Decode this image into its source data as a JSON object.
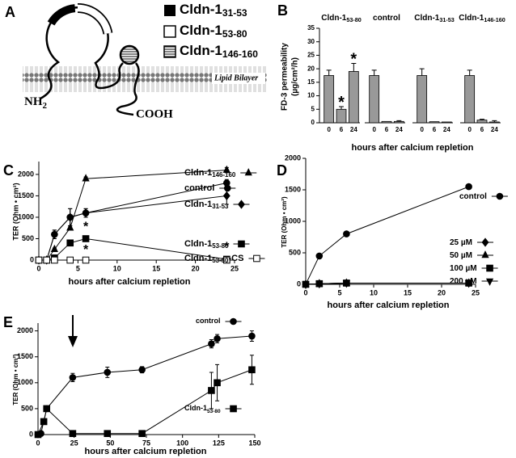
{
  "panel_a": {
    "label": "A",
    "legend": [
      {
        "name": "Cldn-1",
        "sub": "31-53"
      },
      {
        "name": "Cldn-1",
        "sub": "53-80"
      },
      {
        "name": "Cldn-1",
        "sub": "146-160"
      }
    ],
    "membrane": "Lipid Bilayer",
    "n_terminus": "NH",
    "n_terminus_sub": "2",
    "c_terminus": "COOH"
  },
  "chart_data": [
    {
      "type": "bar",
      "label": "B",
      "y_label": [
        "FD-3 permeability",
        "(µg/cm²/h)"
      ],
      "x_label": "hours after calcium repletion",
      "ylim": [
        0,
        35
      ],
      "yticks": [
        0,
        5,
        10,
        15,
        20,
        25,
        30,
        35
      ],
      "color": "#999999",
      "groups": [
        {
          "name": "Cldn-1",
          "name_sub": "53-80",
          "categories": [
            "0",
            "6",
            "24"
          ],
          "values": [
            17.5,
            5,
            19
          ],
          "errors": [
            2,
            1,
            3
          ],
          "stars": [
            null,
            "*",
            "*"
          ]
        },
        {
          "name": "control",
          "categories": [
            "0",
            "6",
            "24"
          ],
          "values": [
            17.5,
            0.5,
            0.5
          ],
          "errors": [
            2,
            0,
            0.3
          ]
        },
        {
          "name": "Cldn-1",
          "name_sub": "31-53",
          "categories": [
            "0",
            "6",
            "24"
          ],
          "values": [
            17.5,
            0.4,
            0.3
          ],
          "errors": [
            2.5,
            0,
            0
          ]
        },
        {
          "name": "Cldn-1",
          "name_sub": "146-160",
          "categories": [
            "0",
            "6",
            "24"
          ],
          "values": [
            17.5,
            1,
            0.3
          ],
          "errors": [
            2,
            0.3,
            0.5
          ]
        }
      ]
    },
    {
      "type": "line",
      "label": "C",
      "y_label": "TER (Ohm • cm²)",
      "x_label": "hours after calcium repletion",
      "xlim": [
        0,
        25
      ],
      "xticks": [
        0,
        5,
        10,
        15,
        20,
        25
      ],
      "ylim": [
        0,
        2300
      ],
      "yticks": [
        0,
        500,
        1000,
        1500,
        2000
      ],
      "x": [
        0,
        1,
        2,
        4,
        6,
        24
      ],
      "color": "#000000",
      "series": [
        {
          "name": "Cldn-1",
          "name_sub": "146-160",
          "marker": "triangle",
          "values": [
            0,
            0,
            250,
            750,
            1900,
            2100
          ],
          "errors": [
            0,
            0,
            30,
            50,
            40,
            60
          ]
        },
        {
          "name": "control",
          "marker": "circle",
          "values": [
            0,
            0,
            600,
            1000,
            1100,
            1800
          ],
          "errors": [
            0,
            0,
            100,
            200,
            100,
            80
          ]
        },
        {
          "name": "Cldn-1",
          "name_sub": "31-53",
          "marker": "diamond",
          "values": [
            0,
            0,
            600,
            1000,
            1100,
            1500
          ],
          "errors": [
            0,
            0,
            100,
            200,
            100,
            200
          ]
        },
        {
          "name": "Cldn-1",
          "name_sub": "53-80",
          "marker": "square",
          "values": [
            0,
            0,
            50,
            400,
            500,
            20
          ],
          "errors": [
            0,
            0,
            20,
            30,
            40,
            50
          ],
          "stars": [
            null,
            null,
            null,
            null,
            "*",
            "*"
          ]
        },
        {
          "name": "Cldn-1",
          "name_sub": "53-80",
          "name_suffix": "-CS",
          "marker": "square-open",
          "values": [
            0,
            0,
            0,
            0,
            0,
            0
          ],
          "stars": [
            null,
            null,
            null,
            null,
            "*",
            null
          ]
        }
      ]
    },
    {
      "type": "line",
      "label": "D",
      "y_label": "TER (Ohm • cm²)",
      "x_label": "hours after calcium repletion",
      "xlim": [
        0,
        25
      ],
      "xticks": [
        0,
        5,
        10,
        15,
        20,
        25
      ],
      "ylim": [
        0,
        2000
      ],
      "yticks": [
        0,
        500,
        1000,
        1500,
        2000
      ],
      "color": "#000000",
      "series": [
        {
          "name": "control",
          "marker": "circle",
          "x": [
            0,
            2,
            6,
            24
          ],
          "values": [
            0,
            450,
            800,
            1550
          ]
        },
        {
          "name": "25  µM",
          "marker": "diamond",
          "x": [
            0,
            2,
            6,
            24
          ],
          "values": [
            0,
            10,
            20,
            20
          ]
        },
        {
          "name": "50  µM",
          "marker": "triangle",
          "x": [
            0,
            2,
            6,
            24
          ],
          "values": [
            0,
            10,
            20,
            20
          ]
        },
        {
          "name": "100  µM",
          "marker": "square",
          "x": [
            0,
            2,
            6,
            24
          ],
          "values": [
            0,
            10,
            20,
            20
          ]
        },
        {
          "name": "200  µM",
          "marker": "triangle-down",
          "x": [
            0,
            2,
            6,
            24
          ],
          "values": [
            0,
            10,
            20,
            20
          ]
        }
      ]
    },
    {
      "type": "line",
      "label": "E",
      "y_label": "TER (Ohm • cm²)",
      "x_label": "hours after calcium repletion",
      "xlim": [
        0,
        150
      ],
      "xticks": [
        0,
        25,
        50,
        75,
        100,
        125,
        150
      ],
      "ylim": [
        0,
        2150
      ],
      "yticks": [
        0,
        500,
        1000,
        1500,
        2000
      ],
      "color": "#000000",
      "series": [
        {
          "name": "control",
          "marker": "circle",
          "x": [
            0,
            2,
            6,
            24,
            48,
            72,
            120,
            124,
            148
          ],
          "values": [
            0,
            20,
            500,
            1100,
            1200,
            1250,
            1750,
            1850,
            1900
          ],
          "errors": [
            0,
            0,
            0,
            80,
            100,
            60,
            80,
            80,
            100
          ]
        },
        {
          "name": "Cldn-1",
          "name_sub": "53-80",
          "marker": "square",
          "x": [
            0,
            4,
            6,
            24,
            48,
            72,
            120,
            124,
            148
          ],
          "values": [
            0,
            250,
            500,
            20,
            20,
            20,
            850,
            1000,
            1250
          ],
          "errors": [
            0,
            0,
            0,
            0,
            0,
            0,
            350,
            350,
            280
          ]
        }
      ]
    }
  ]
}
